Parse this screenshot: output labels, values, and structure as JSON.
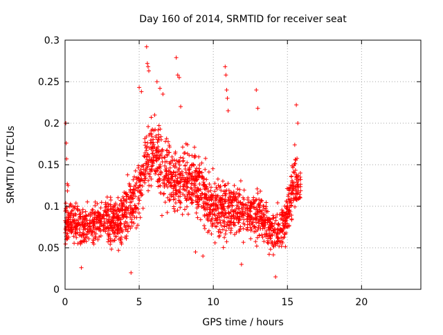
{
  "chart_data": {
    "type": "scatter",
    "title": "Day 160 of 2014, SRMTID for receiver seat",
    "xlabel": "GPS time / hours",
    "ylabel": "SRMTID / TECUs",
    "xlim": [
      0,
      24
    ],
    "ylim": [
      0,
      0.3
    ],
    "x_ticks": [
      0,
      5,
      10,
      15,
      20
    ],
    "x_tick_labels": [
      "0",
      "5",
      "10",
      "15",
      "20"
    ],
    "y_ticks": [
      0,
      0.05,
      0.1,
      0.15,
      0.2,
      0.25,
      0.3
    ],
    "y_tick_labels": [
      "0",
      "0.05",
      "0.1",
      "0.15",
      "0.2",
      "0.25",
      "0.3"
    ],
    "grid": true,
    "marker": "plus",
    "series_color": "#ff0000",
    "x_data_range": [
      0,
      15.9
    ],
    "envelope": [
      {
        "x": 0.0,
        "y": 0.085,
        "spread": 0.04
      },
      {
        "x": 0.5,
        "y": 0.082,
        "spread": 0.035
      },
      {
        "x": 1.0,
        "y": 0.075,
        "spread": 0.03
      },
      {
        "x": 1.5,
        "y": 0.075,
        "spread": 0.03
      },
      {
        "x": 2.0,
        "y": 0.08,
        "spread": 0.03
      },
      {
        "x": 2.5,
        "y": 0.085,
        "spread": 0.035
      },
      {
        "x": 3.0,
        "y": 0.085,
        "spread": 0.035
      },
      {
        "x": 3.5,
        "y": 0.08,
        "spread": 0.035
      },
      {
        "x": 4.0,
        "y": 0.09,
        "spread": 0.04
      },
      {
        "x": 4.5,
        "y": 0.1,
        "spread": 0.04
      },
      {
        "x": 5.0,
        "y": 0.12,
        "spread": 0.05
      },
      {
        "x": 5.5,
        "y": 0.15,
        "spread": 0.05
      },
      {
        "x": 6.0,
        "y": 0.17,
        "spread": 0.05
      },
      {
        "x": 6.5,
        "y": 0.15,
        "spread": 0.05
      },
      {
        "x": 7.0,
        "y": 0.14,
        "spread": 0.05
      },
      {
        "x": 7.5,
        "y": 0.13,
        "spread": 0.045
      },
      {
        "x": 8.0,
        "y": 0.13,
        "spread": 0.045
      },
      {
        "x": 8.5,
        "y": 0.13,
        "spread": 0.045
      },
      {
        "x": 9.0,
        "y": 0.125,
        "spread": 0.045
      },
      {
        "x": 9.5,
        "y": 0.11,
        "spread": 0.045
      },
      {
        "x": 10.0,
        "y": 0.1,
        "spread": 0.045
      },
      {
        "x": 10.5,
        "y": 0.1,
        "spread": 0.045
      },
      {
        "x": 11.0,
        "y": 0.095,
        "spread": 0.045
      },
      {
        "x": 11.5,
        "y": 0.1,
        "spread": 0.04
      },
      {
        "x": 12.0,
        "y": 0.095,
        "spread": 0.04
      },
      {
        "x": 12.5,
        "y": 0.09,
        "spread": 0.04
      },
      {
        "x": 13.0,
        "y": 0.09,
        "spread": 0.04
      },
      {
        "x": 13.5,
        "y": 0.08,
        "spread": 0.035
      },
      {
        "x": 14.0,
        "y": 0.07,
        "spread": 0.03
      },
      {
        "x": 14.5,
        "y": 0.07,
        "spread": 0.03
      },
      {
        "x": 15.0,
        "y": 0.09,
        "spread": 0.04
      },
      {
        "x": 15.5,
        "y": 0.13,
        "spread": 0.04
      },
      {
        "x": 15.9,
        "y": 0.12,
        "spread": 0.035
      }
    ],
    "points": [
      [
        0.05,
        0.2
      ],
      [
        0.08,
        0.176
      ],
      [
        0.1,
        0.157
      ],
      [
        0.15,
        0.127
      ],
      [
        0.2,
        0.125
      ],
      [
        5.0,
        0.243
      ],
      [
        5.15,
        0.238
      ],
      [
        5.5,
        0.292
      ],
      [
        5.55,
        0.272
      ],
      [
        5.6,
        0.268
      ],
      [
        5.65,
        0.263
      ],
      [
        6.2,
        0.25
      ],
      [
        6.4,
        0.242
      ],
      [
        6.6,
        0.235
      ],
      [
        7.5,
        0.279
      ],
      [
        7.6,
        0.258
      ],
      [
        7.7,
        0.255
      ],
      [
        7.8,
        0.22
      ],
      [
        10.8,
        0.268
      ],
      [
        10.85,
        0.258
      ],
      [
        10.9,
        0.24
      ],
      [
        10.95,
        0.23
      ],
      [
        11.0,
        0.215
      ],
      [
        12.9,
        0.24
      ],
      [
        13.0,
        0.218
      ],
      [
        15.6,
        0.222
      ],
      [
        15.7,
        0.2
      ],
      [
        4.45,
        0.02
      ],
      [
        1.1,
        0.026
      ],
      [
        11.9,
        0.03
      ],
      [
        14.2,
        0.015
      ],
      [
        8.8,
        0.045
      ],
      [
        9.3,
        0.04
      ]
    ]
  }
}
